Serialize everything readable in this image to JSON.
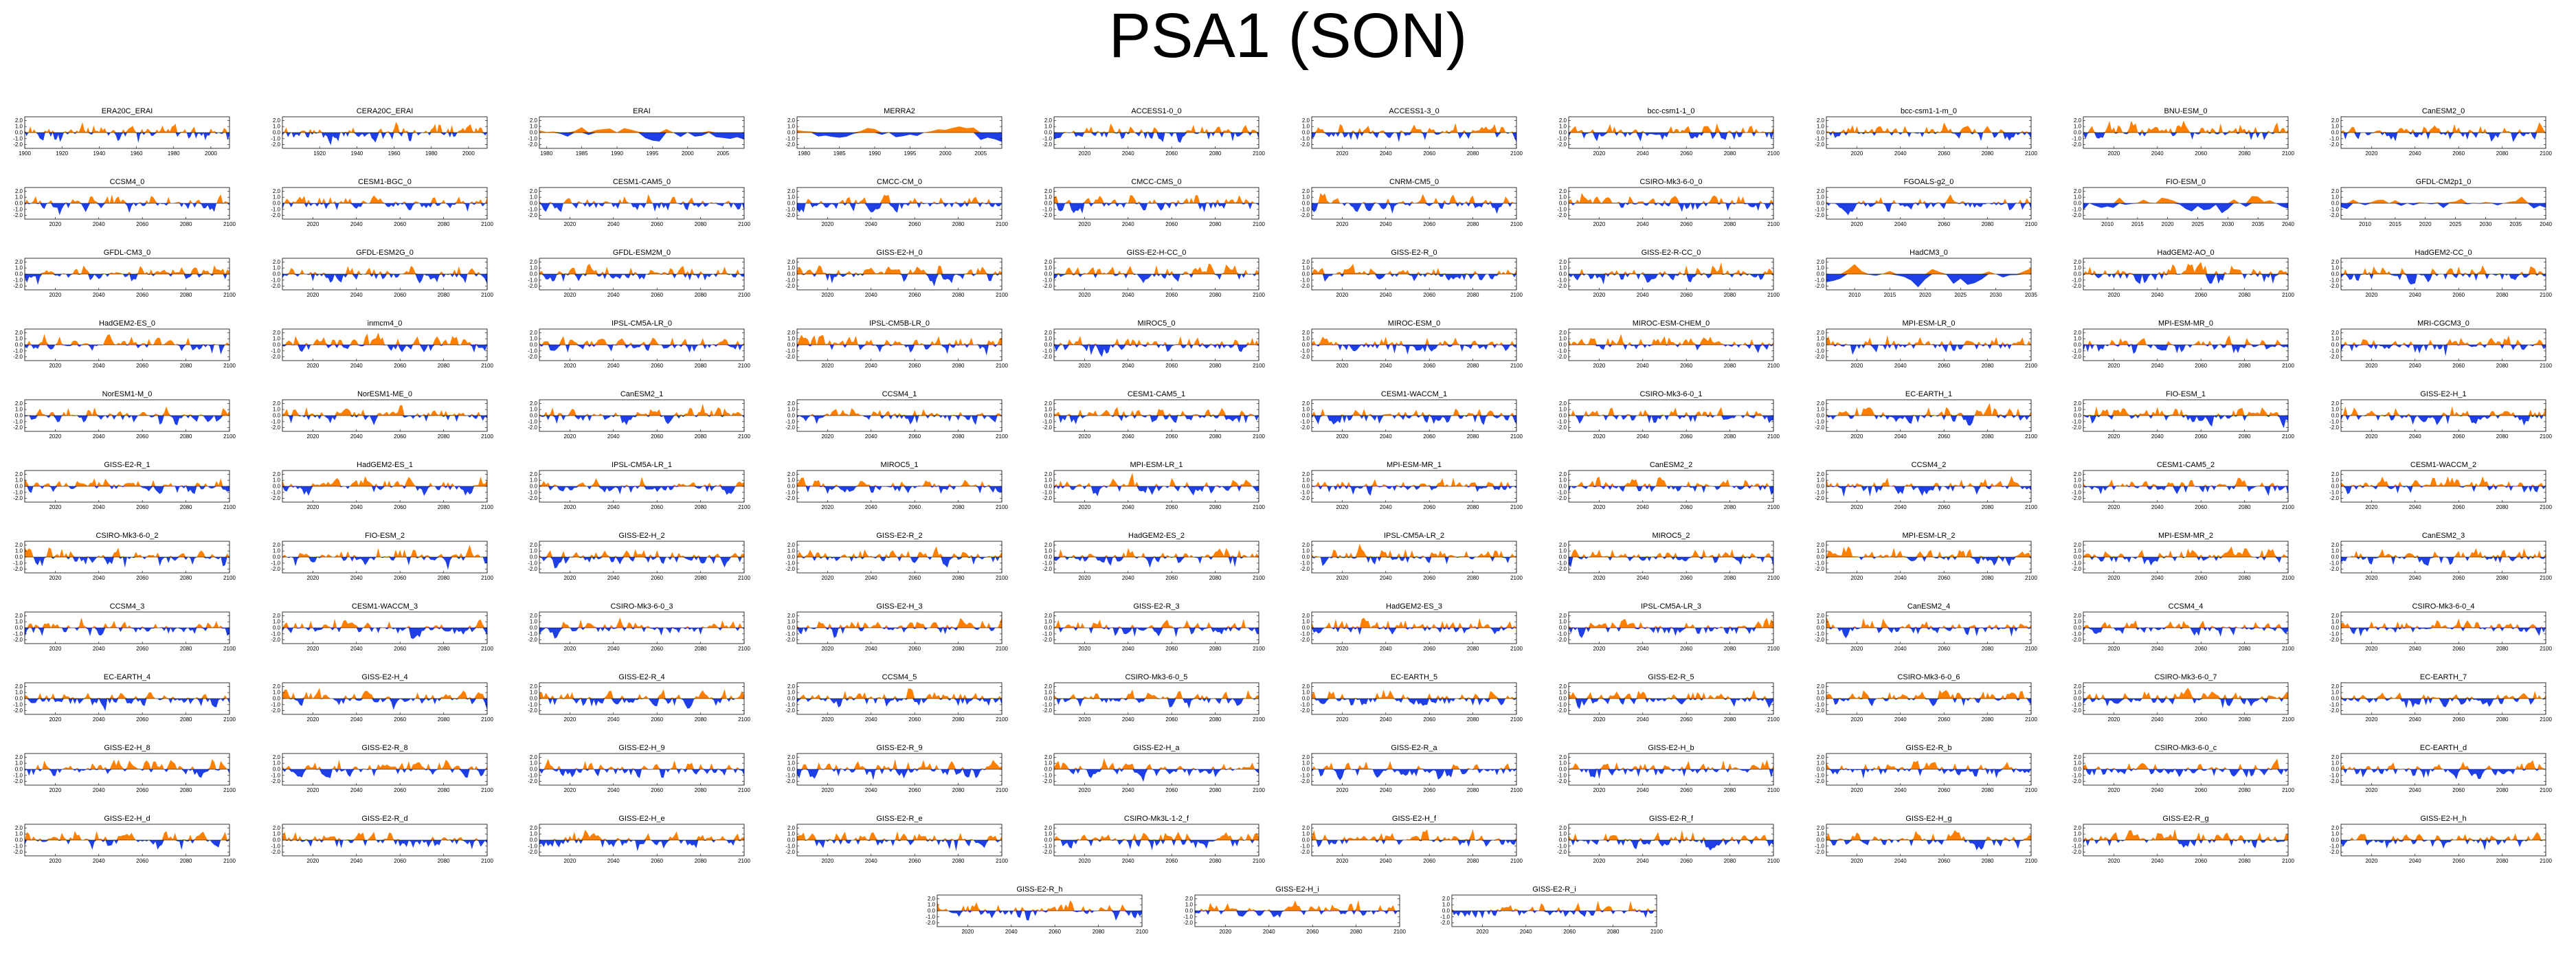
{
  "title": "PSA1 (SON)",
  "colors": {
    "positive": "#ff8000",
    "negative": "#1f3fe6",
    "zero_line": "#000000"
  },
  "chart_data": {
    "type": "area",
    "layout": "small-multiples",
    "yticks": [
      "2.0",
      "1.0",
      "0.0",
      "-1.0",
      "-2.0"
    ],
    "ylim": [
      -2.6,
      2.6
    ],
    "x_tick_sets": {
      "era20c": {
        "labels": [
          "1900",
          "1920",
          "1940",
          "1960",
          "1980",
          "2000"
        ],
        "range": [
          1900,
          2010
        ]
      },
      "era20c_b": {
        "labels": [
          "1920",
          "1940",
          "1960",
          "1980",
          "2000"
        ],
        "range": [
          1900,
          2010
        ]
      },
      "erai": {
        "labels": [
          "1980",
          "1985",
          "1990",
          "1995",
          "2000",
          "2005"
        ],
        "range": [
          1979,
          2008
        ]
      },
      "merra": {
        "labels": [
          "1980",
          "1985",
          "1990",
          "1995",
          "2000",
          "2005"
        ],
        "range": [
          1979,
          2008
        ]
      },
      "proj": {
        "labels": [
          "2020",
          "2040",
          "2060",
          "2080",
          "2100"
        ],
        "range": [
          2006,
          2100
        ]
      },
      "short": {
        "labels": [
          "2010",
          "2015",
          "2020",
          "2025",
          "2030",
          "2035"
        ],
        "range": [
          2006,
          2035
        ]
      },
      "fio": {
        "labels": [
          "2010",
          "2015",
          "2020",
          "2025",
          "2030",
          "2035",
          "2040"
        ],
        "range": [
          2006,
          2040
        ]
      },
      "gfdl2p1": {
        "labels": [
          "2010",
          "2015",
          "2020",
          "2025",
          "2030",
          "2035",
          "2040"
        ],
        "range": [
          2006,
          2040
        ]
      }
    },
    "panels": [
      {
        "name": "ERA20C_ERAI",
        "ticks": "era20c"
      },
      {
        "name": "CERA20C_ERAI",
        "ticks": "era20c_b"
      },
      {
        "name": "ERAI",
        "ticks": "erai"
      },
      {
        "name": "MERRA2",
        "ticks": "merra"
      },
      {
        "name": "ACCESS1-0_0",
        "ticks": "proj"
      },
      {
        "name": "ACCESS1-3_0",
        "ticks": "proj"
      },
      {
        "name": "bcc-csm1-1_0",
        "ticks": "proj"
      },
      {
        "name": "bcc-csm1-1-m_0",
        "ticks": "proj"
      },
      {
        "name": "BNU-ESM_0",
        "ticks": "proj"
      },
      {
        "name": "CanESM2_0",
        "ticks": "proj"
      },
      {
        "name": "CCSM4_0",
        "ticks": "proj"
      },
      {
        "name": "CESM1-BGC_0",
        "ticks": "proj"
      },
      {
        "name": "CESM1-CAM5_0",
        "ticks": "proj"
      },
      {
        "name": "CMCC-CM_0",
        "ticks": "proj"
      },
      {
        "name": "CMCC-CMS_0",
        "ticks": "proj"
      },
      {
        "name": "CNRM-CM5_0",
        "ticks": "proj"
      },
      {
        "name": "CSIRO-Mk3-6-0_0",
        "ticks": "proj"
      },
      {
        "name": "FGOALS-g2_0",
        "ticks": "proj"
      },
      {
        "name": "FIO-ESM_0",
        "ticks": "fio"
      },
      {
        "name": "GFDL-CM2p1_0",
        "ticks": "gfdl2p1"
      },
      {
        "name": "GFDL-CM3_0",
        "ticks": "proj"
      },
      {
        "name": "GFDL-ESM2G_0",
        "ticks": "proj"
      },
      {
        "name": "GFDL-ESM2M_0",
        "ticks": "proj"
      },
      {
        "name": "GISS-E2-H_0",
        "ticks": "proj"
      },
      {
        "name": "GISS-E2-H-CC_0",
        "ticks": "proj"
      },
      {
        "name": "GISS-E2-R_0",
        "ticks": "proj"
      },
      {
        "name": "GISS-E2-R-CC_0",
        "ticks": "proj"
      },
      {
        "name": "HadCM3_0",
        "ticks": "short"
      },
      {
        "name": "HadGEM2-AO_0",
        "ticks": "proj"
      },
      {
        "name": "HadGEM2-CC_0",
        "ticks": "proj"
      },
      {
        "name": "HadGEM2-ES_0",
        "ticks": "proj"
      },
      {
        "name": "inmcm4_0",
        "ticks": "proj"
      },
      {
        "name": "IPSL-CM5A-LR_0",
        "ticks": "proj"
      },
      {
        "name": "IPSL-CM5B-LR_0",
        "ticks": "proj"
      },
      {
        "name": "MIROC5_0",
        "ticks": "proj"
      },
      {
        "name": "MIROC-ESM_0",
        "ticks": "proj"
      },
      {
        "name": "MIROC-ESM-CHEM_0",
        "ticks": "proj"
      },
      {
        "name": "MPI-ESM-LR_0",
        "ticks": "proj"
      },
      {
        "name": "MPI-ESM-MR_0",
        "ticks": "proj"
      },
      {
        "name": "MRI-CGCM3_0",
        "ticks": "proj"
      },
      {
        "name": "NorESM1-M_0",
        "ticks": "proj"
      },
      {
        "name": "NorESM1-ME_0",
        "ticks": "proj"
      },
      {
        "name": "CanESM2_1",
        "ticks": "proj"
      },
      {
        "name": "CCSM4_1",
        "ticks": "proj"
      },
      {
        "name": "CESM1-CAM5_1",
        "ticks": "proj"
      },
      {
        "name": "CESM1-WACCM_1",
        "ticks": "proj"
      },
      {
        "name": "CSIRO-Mk3-6-0_1",
        "ticks": "proj"
      },
      {
        "name": "EC-EARTH_1",
        "ticks": "proj"
      },
      {
        "name": "FIO-ESM_1",
        "ticks": "proj"
      },
      {
        "name": "GISS-E2-H_1",
        "ticks": "proj"
      },
      {
        "name": "GISS-E2-R_1",
        "ticks": "proj"
      },
      {
        "name": "HadGEM2-ES_1",
        "ticks": "proj"
      },
      {
        "name": "IPSL-CM5A-LR_1",
        "ticks": "proj"
      },
      {
        "name": "MIROC5_1",
        "ticks": "proj"
      },
      {
        "name": "MPI-ESM-LR_1",
        "ticks": "proj"
      },
      {
        "name": "MPI-ESM-MR_1",
        "ticks": "proj"
      },
      {
        "name": "CanESM2_2",
        "ticks": "proj"
      },
      {
        "name": "CCSM4_2",
        "ticks": "proj"
      },
      {
        "name": "CESM1-CAM5_2",
        "ticks": "proj"
      },
      {
        "name": "CESM1-WACCM_2",
        "ticks": "proj"
      },
      {
        "name": "CSIRO-Mk3-6-0_2",
        "ticks": "proj"
      },
      {
        "name": "FIO-ESM_2",
        "ticks": "proj"
      },
      {
        "name": "GISS-E2-H_2",
        "ticks": "proj"
      },
      {
        "name": "GISS-E2-R_2",
        "ticks": "proj"
      },
      {
        "name": "HadGEM2-ES_2",
        "ticks": "proj"
      },
      {
        "name": "IPSL-CM5A-LR_2",
        "ticks": "proj"
      },
      {
        "name": "MIROC5_2",
        "ticks": "proj"
      },
      {
        "name": "MPI-ESM-LR_2",
        "ticks": "proj"
      },
      {
        "name": "MPI-ESM-MR_2",
        "ticks": "proj"
      },
      {
        "name": "CanESM2_3",
        "ticks": "proj"
      },
      {
        "name": "CCSM4_3",
        "ticks": "proj"
      },
      {
        "name": "CESM1-WACCM_3",
        "ticks": "proj"
      },
      {
        "name": "CSIRO-Mk3-6-0_3",
        "ticks": "proj"
      },
      {
        "name": "GISS-E2-H_3",
        "ticks": "proj"
      },
      {
        "name": "GISS-E2-R_3",
        "ticks": "proj"
      },
      {
        "name": "HadGEM2-ES_3",
        "ticks": "proj"
      },
      {
        "name": "IPSL-CM5A-LR_3",
        "ticks": "proj"
      },
      {
        "name": "CanESM2_4",
        "ticks": "proj"
      },
      {
        "name": "CCSM4_4",
        "ticks": "proj"
      },
      {
        "name": "CSIRO-Mk3-6-0_4",
        "ticks": "proj"
      },
      {
        "name": "EC-EARTH_4",
        "ticks": "proj"
      },
      {
        "name": "GISS-E2-H_4",
        "ticks": "proj"
      },
      {
        "name": "GISS-E2-R_4",
        "ticks": "proj"
      },
      {
        "name": "CCSM4_5",
        "ticks": "proj"
      },
      {
        "name": "CSIRO-Mk3-6-0_5",
        "ticks": "proj"
      },
      {
        "name": "EC-EARTH_5",
        "ticks": "proj"
      },
      {
        "name": "GISS-E2-R_5",
        "ticks": "proj"
      },
      {
        "name": "CSIRO-Mk3-6-0_6",
        "ticks": "proj"
      },
      {
        "name": "CSIRO-Mk3-6-0_7",
        "ticks": "proj"
      },
      {
        "name": "EC-EARTH_7",
        "ticks": "proj"
      },
      {
        "name": "GISS-E2-H_8",
        "ticks": "proj"
      },
      {
        "name": "GISS-E2-R_8",
        "ticks": "proj"
      },
      {
        "name": "GISS-E2-H_9",
        "ticks": "proj"
      },
      {
        "name": "GISS-E2-R_9",
        "ticks": "proj"
      },
      {
        "name": "GISS-E2-H_a",
        "ticks": "proj"
      },
      {
        "name": "GISS-E2-R_a",
        "ticks": "proj"
      },
      {
        "name": "GISS-E2-H_b",
        "ticks": "proj"
      },
      {
        "name": "GISS-E2-R_b",
        "ticks": "proj"
      },
      {
        "name": "CSIRO-Mk3-6-0_c",
        "ticks": "proj"
      },
      {
        "name": "EC-EARTH_d",
        "ticks": "proj"
      },
      {
        "name": "GISS-E2-H_d",
        "ticks": "proj"
      },
      {
        "name": "GISS-E2-R_d",
        "ticks": "proj"
      },
      {
        "name": "GISS-E2-H_e",
        "ticks": "proj"
      },
      {
        "name": "GISS-E2-R_e",
        "ticks": "proj"
      },
      {
        "name": "CSIRO-Mk3L-1-2_f",
        "ticks": "proj"
      },
      {
        "name": "GISS-E2-H_f",
        "ticks": "proj"
      },
      {
        "name": "GISS-E2-R_f",
        "ticks": "proj"
      },
      {
        "name": "GISS-E2-H_g",
        "ticks": "proj"
      },
      {
        "name": "GISS-E2-R_g",
        "ticks": "proj"
      },
      {
        "name": "GISS-E2-H_h",
        "ticks": "proj"
      },
      {
        "name": "GISS-E2-R_h",
        "ticks": "proj"
      },
      {
        "name": "GISS-E2-H_i",
        "ticks": "proj"
      },
      {
        "name": "GISS-E2-R_i",
        "ticks": "proj"
      }
    ]
  }
}
